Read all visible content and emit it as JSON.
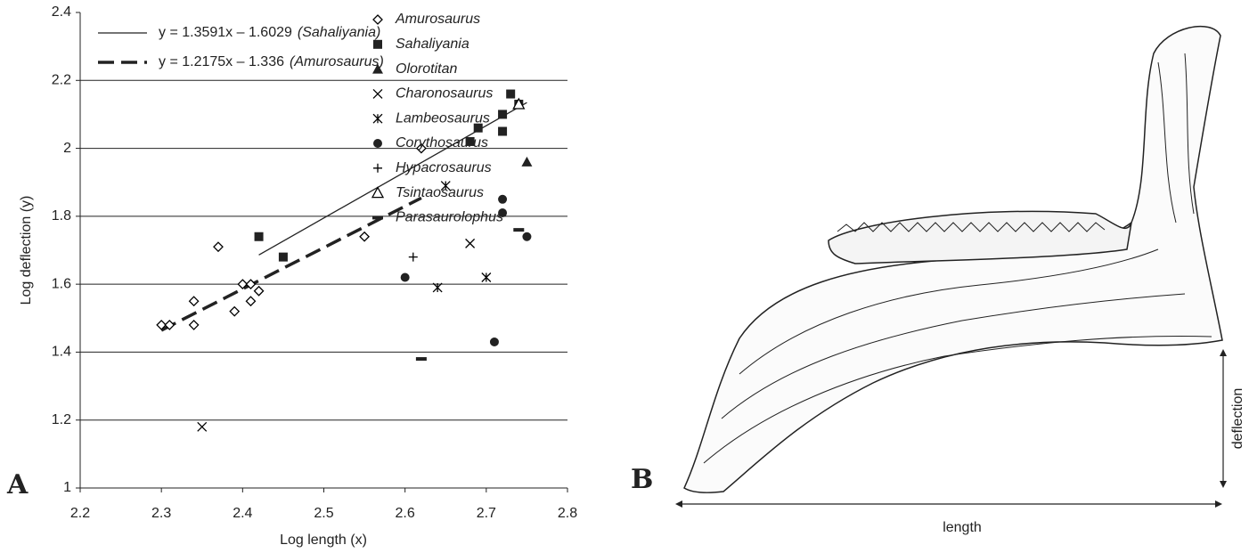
{
  "chart_data": {
    "type": "scatter",
    "panel_label": "A",
    "xlabel": "Log length (x)",
    "ylabel": "Log deflection (y)",
    "xlim": [
      2.2,
      2.8
    ],
    "xticks": [
      2.2,
      2.3,
      2.4,
      2.5,
      2.6,
      2.7,
      2.8
    ],
    "ylim": [
      1,
      2.4
    ],
    "yticks": [
      1,
      1.2,
      1.4,
      1.6,
      1.8,
      2,
      2.2,
      2.4
    ],
    "grid": true,
    "fits": [
      {
        "label": "y = 1.3591x – 1.6029",
        "species_label": "(Sahaliyania)",
        "slope": 1.3591,
        "intercept": -1.6029,
        "x_range": [
          2.42,
          2.75
        ],
        "dash": "solid"
      },
      {
        "label": "y = 1.2175x – 1.336",
        "species_label": "(Amurosaurus)",
        "slope": 1.2175,
        "intercept": -1.336,
        "x_range": [
          2.3,
          2.62
        ],
        "dash": "dashed"
      }
    ],
    "series": [
      {
        "name": "Amurosaurus",
        "marker": "diamond-open",
        "color": "#000000",
        "x": [
          2.3,
          2.31,
          2.34,
          2.34,
          2.37,
          2.39,
          2.4,
          2.41,
          2.41,
          2.42,
          2.55,
          2.62
        ],
        "values": [
          1.48,
          1.48,
          1.55,
          1.48,
          1.71,
          1.52,
          1.6,
          1.6,
          1.55,
          1.58,
          1.74,
          2.0
        ]
      },
      {
        "name": "Sahaliyania",
        "marker": "square",
        "color": "#222222",
        "x": [
          2.42,
          2.45,
          2.68,
          2.69,
          2.72,
          2.72,
          2.73,
          2.74
        ],
        "values": [
          1.74,
          1.68,
          2.02,
          2.06,
          2.1,
          2.05,
          2.16,
          2.13
        ]
      },
      {
        "name": "Olorotitan",
        "marker": "triangle",
        "color": "#222222",
        "x": [
          2.75
        ],
        "values": [
          1.96
        ]
      },
      {
        "name": "Charonosaurus",
        "marker": "x",
        "color": "#000000",
        "x": [
          2.35,
          2.68
        ],
        "values": [
          1.18,
          1.72
        ]
      },
      {
        "name": "Lambeosaurus",
        "marker": "asterisk",
        "color": "#000000",
        "x": [
          2.65,
          2.64,
          2.7
        ],
        "values": [
          1.89,
          1.59,
          1.62
        ]
      },
      {
        "name": "Corythosaurus",
        "marker": "circle",
        "color": "#222222",
        "x": [
          2.6,
          2.72,
          2.72,
          2.71,
          2.75
        ],
        "values": [
          1.62,
          1.85,
          1.81,
          1.43,
          1.74
        ]
      },
      {
        "name": "Hypacrosaurus",
        "marker": "plus",
        "color": "#000000",
        "x": [
          2.61
        ],
        "values": [
          1.68
        ]
      },
      {
        "name": "Tsintaosaurus",
        "marker": "triangle-open",
        "color": "#000000",
        "x": [
          2.74
        ],
        "values": [
          2.13
        ]
      },
      {
        "name": "Parasaurolophus",
        "marker": "dash",
        "color": "#222222",
        "x": [
          2.62,
          2.74
        ],
        "values": [
          1.38,
          1.76
        ]
      }
    ]
  },
  "panel_b": {
    "label": "B",
    "length_label": "length",
    "deflection_label": "deflection"
  }
}
